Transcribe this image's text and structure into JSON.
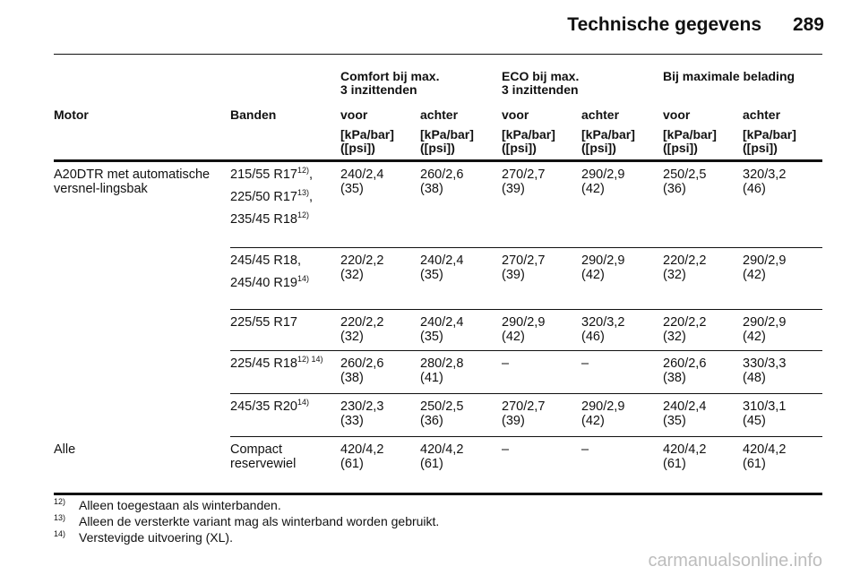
{
  "page": {
    "title": "Technische gegevens",
    "number": "289"
  },
  "table": {
    "groups": [
      {
        "line1": "Comfort bij max.",
        "line2": "3 inzittenden"
      },
      {
        "line1": "ECO bij max.",
        "line2": "3 inzittenden"
      },
      {
        "line1": "Bij maximale belading",
        "line2": ""
      }
    ],
    "columns": {
      "motor": "Motor",
      "banden": "Banden",
      "voor": "voor",
      "achter": "achter",
      "unit_line1": "[kPa/bar]",
      "unit_line2": "([psi])"
    },
    "rows": [
      {
        "motor": "A20DTR met automatische versnel-lingsbak",
        "tires": [
          {
            "text": "215/55 R17",
            "sup": "12)",
            "after": ","
          },
          {
            "text": "225/50 R17",
            "sup": "13)",
            "after": ","
          },
          {
            "text": "235/45 R18",
            "sup": "12)",
            "after": ""
          }
        ],
        "values": [
          [
            "240/2,4",
            "(35)"
          ],
          [
            "260/2,6",
            "(38)"
          ],
          [
            "270/2,7",
            "(39)"
          ],
          [
            "290/2,9",
            "(42)"
          ],
          [
            "250/2,5",
            "(36)"
          ],
          [
            "320/3,2",
            "(46)"
          ]
        ]
      },
      {
        "motor": "",
        "tires": [
          {
            "text": "245/45 R18,",
            "sup": "",
            "after": ""
          },
          {
            "text": "245/40 R19",
            "sup": "14)",
            "after": ""
          }
        ],
        "values": [
          [
            "220/2,2",
            "(32)"
          ],
          [
            "240/2,4",
            "(35)"
          ],
          [
            "270/2,7",
            "(39)"
          ],
          [
            "290/2,9",
            "(42)"
          ],
          [
            "220/2,2",
            "(32)"
          ],
          [
            "290/2,9",
            "(42)"
          ]
        ]
      },
      {
        "motor": "",
        "tires": [
          {
            "text": "225/55 R17",
            "sup": "",
            "after": ""
          }
        ],
        "values": [
          [
            "220/2,2",
            "(32)"
          ],
          [
            "240/2,4",
            "(35)"
          ],
          [
            "290/2,9",
            "(42)"
          ],
          [
            "320/3,2",
            "(46)"
          ],
          [
            "220/2,2",
            "(32)"
          ],
          [
            "290/2,9",
            "(42)"
          ]
        ]
      },
      {
        "motor": "",
        "tires": [
          {
            "text": "225/45 R18",
            "sup": "12) 14)",
            "after": ""
          }
        ],
        "values": [
          [
            "260/2,6",
            "(38)"
          ],
          [
            "280/2,8",
            "(41)"
          ],
          [
            "–",
            ""
          ],
          [
            "–",
            ""
          ],
          [
            "260/2,6",
            "(38)"
          ],
          [
            "330/3,3",
            "(48)"
          ]
        ]
      },
      {
        "motor": "",
        "tires": [
          {
            "text": "245/35 R20",
            "sup": "14)",
            "after": ""
          }
        ],
        "values": [
          [
            "230/2,3",
            "(33)"
          ],
          [
            "250/2,5",
            "(36)"
          ],
          [
            "270/2,7",
            "(39)"
          ],
          [
            "290/2,9",
            "(42)"
          ],
          [
            "240/2,4",
            "(35)"
          ],
          [
            "310/3,1",
            "(45)"
          ]
        ]
      },
      {
        "motor": "Alle",
        "tires": [
          {
            "text": "Compact reservewiel",
            "sup": "",
            "after": ""
          }
        ],
        "values": [
          [
            "420/4,2",
            "(61)"
          ],
          [
            "420/4,2",
            "(61)"
          ],
          [
            "–",
            ""
          ],
          [
            "–",
            ""
          ],
          [
            "420/4,2",
            "(61)"
          ],
          [
            "420/4,2",
            "(61)"
          ]
        ]
      }
    ]
  },
  "footnotes": [
    {
      "num": "12)",
      "text": "Alleen toegestaan als winterbanden."
    },
    {
      "num": "13)",
      "text": "Alleen de versterkte variant mag als winterband worden gebruikt."
    },
    {
      "num": "14)",
      "text": "Verstevigde uitvoering (XL)."
    }
  ],
  "watermark": "carmanualsonline.info"
}
